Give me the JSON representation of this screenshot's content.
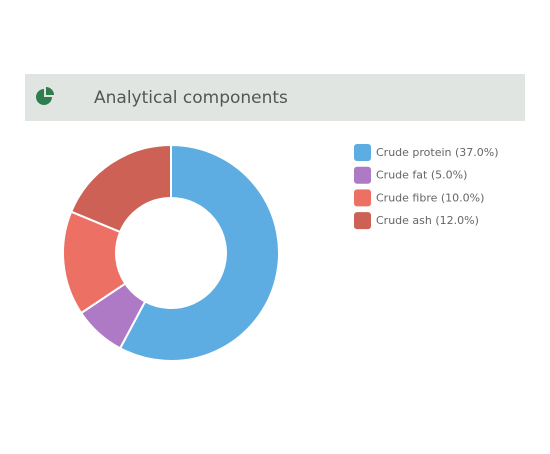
{
  "chart_data": {
    "type": "donut",
    "title": "Analytical components",
    "categories": [
      "Crude protein (37.0%)",
      "Crude fat (5.0%)",
      "Crude fibre (10.0%)",
      "Crude ash (12.0%)"
    ],
    "values": [
      37,
      5,
      10,
      12
    ],
    "colors": [
      "#5dade2",
      "#af7ac5",
      "#ec7063",
      "#cd6155"
    ],
    "legend": "right"
  }
}
